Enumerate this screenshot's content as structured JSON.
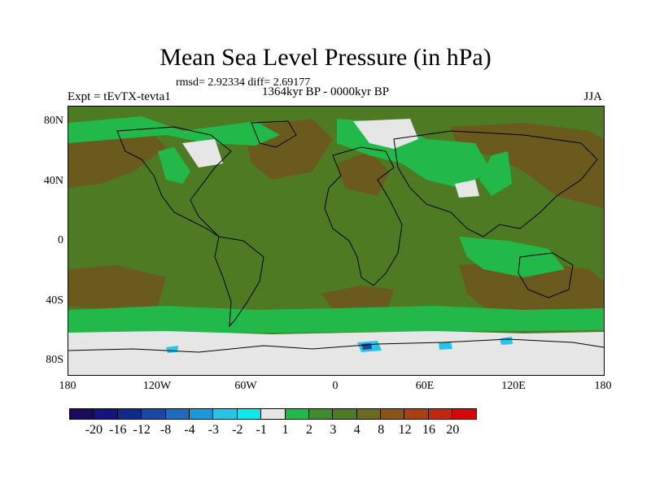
{
  "title": "Mean Sea Level Pressure (in hPa)",
  "stats": "rmsd= 2.92334  diff= 2.69177",
  "experiment": "Expt = tEvTX-tevta1",
  "period": "1364kyr BP - 0000kyr BP",
  "season": "JJA",
  "y_axis_labels": [
    "80N",
    "40N",
    "0",
    "40S",
    "80S"
  ],
  "x_axis_labels": [
    "180",
    "120W",
    "60W",
    "0",
    "60E",
    "120E",
    "180"
  ],
  "colorbar": {
    "labels": [
      "-20",
      "-16",
      "-12",
      "-8",
      "-4",
      "-3",
      "-2",
      "-1",
      "1",
      "2",
      "3",
      "4",
      "8",
      "12",
      "16",
      "20"
    ],
    "colors": [
      "#1e0a5c",
      "#17137c",
      "#102a8c",
      "#1848a0",
      "#1f6cbf",
      "#1a98d8",
      "#28c3e6",
      "#0fe8e8",
      "#e6e6e6",
      "#22b84a",
      "#3e8c2b",
      "#4d7a22",
      "#6b6a1e",
      "#8a5517",
      "#a84012",
      "#c0270e",
      "#d40808"
    ]
  }
}
